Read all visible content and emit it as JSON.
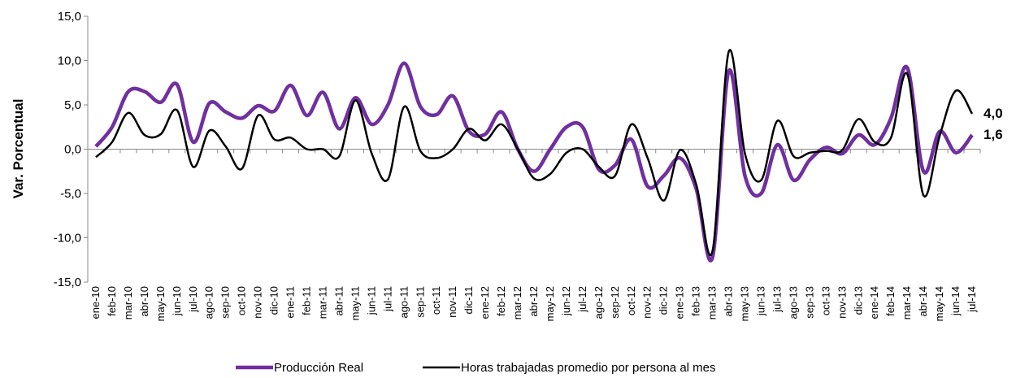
{
  "chart_data": {
    "type": "line",
    "y_label": "Var. Porcentual",
    "categories": [
      "ene-10",
      "feb-10",
      "mar-10",
      "abr-10",
      "may-10",
      "jun-10",
      "jul-10",
      "ago-10",
      "sep-10",
      "oct-10",
      "nov-10",
      "dic-10",
      "ene-11",
      "feb-11",
      "mar-11",
      "abr-11",
      "may-11",
      "jun-11",
      "jul-11",
      "ago-11",
      "sep-11",
      "oct-11",
      "nov-11",
      "dic-11",
      "ene-12",
      "feb-12",
      "mar-12",
      "abr-12",
      "may-12",
      "jun-12",
      "jul-12",
      "ago-12",
      "sep-12",
      "oct-12",
      "nov-12",
      "dic-12",
      "ene-13",
      "feb-13",
      "mar-13",
      "abr-13",
      "may-13",
      "jun-13",
      "jul-13",
      "ago-13",
      "sep-13",
      "oct-13",
      "nov-13",
      "dic-13",
      "ene-14",
      "feb-14",
      "mar-14",
      "abr-14",
      "may-14",
      "jun-14",
      "jul-14"
    ],
    "series": [
      {
        "name": "Producción Real",
        "color": "#7030a0",
        "values": [
          0.3,
          2.5,
          6.5,
          6.5,
          5.3,
          7.3,
          0.8,
          5.2,
          4.2,
          3.5,
          4.9,
          4.3,
          7.2,
          3.8,
          6.4,
          2.3,
          5.8,
          2.8,
          5.0,
          9.7,
          4.8,
          3.9,
          6.0,
          2.0,
          1.7,
          4.2,
          0.0,
          -2.5,
          0.0,
          2.5,
          2.5,
          -2.3,
          -1.8,
          1.1,
          -4.2,
          -3.0,
          -1.0,
          -4.5,
          -12.2,
          8.8,
          -3.0,
          -5.0,
          0.5,
          -3.5,
          -1.2,
          0.2,
          -0.5,
          1.6,
          0.5,
          3.5,
          9.2,
          -2.5,
          2.0,
          -0.4,
          1.6
        ],
        "value_labels": [
          null,
          null,
          null,
          null,
          null,
          null,
          null,
          null,
          null,
          null,
          null,
          null,
          null,
          null,
          null,
          null,
          null,
          null,
          null,
          null,
          null,
          null,
          null,
          null,
          null,
          null,
          null,
          null,
          null,
          null,
          null,
          null,
          null,
          null,
          null,
          null,
          null,
          null,
          null,
          null,
          null,
          null,
          null,
          null,
          null,
          null,
          null,
          null,
          null,
          null,
          null,
          null,
          null,
          null,
          "1,6"
        ]
      },
      {
        "name": "Horas trabajadas promedio por persona al mes",
        "color": "#000000",
        "values": [
          -0.9,
          0.8,
          4.1,
          1.6,
          1.7,
          4.4,
          -2.0,
          2.1,
          0.3,
          -2.2,
          3.8,
          1.1,
          1.3,
          0.0,
          0.0,
          -0.8,
          5.5,
          -0.5,
          -3.4,
          4.8,
          -0.2,
          -1.0,
          0.0,
          2.3,
          1.0,
          2.8,
          0.0,
          -3.3,
          -2.8,
          -0.4,
          0.0,
          -2.0,
          -3.0,
          2.8,
          -1.0,
          -5.8,
          -0.1,
          -4.0,
          -11.5,
          11.0,
          -0.5,
          -3.5,
          3.2,
          -0.8,
          -0.4,
          -0.2,
          -0.1,
          3.4,
          0.8,
          1.3,
          8.5,
          -5.2,
          1.5,
          6.6,
          4.0
        ],
        "value_labels": [
          null,
          null,
          null,
          null,
          null,
          null,
          null,
          null,
          null,
          null,
          null,
          null,
          null,
          null,
          null,
          null,
          null,
          null,
          null,
          null,
          null,
          null,
          null,
          null,
          null,
          null,
          null,
          null,
          null,
          null,
          null,
          null,
          null,
          null,
          null,
          null,
          null,
          null,
          null,
          null,
          null,
          null,
          null,
          null,
          null,
          null,
          null,
          null,
          null,
          null,
          null,
          null,
          null,
          null,
          "4,0"
        ]
      }
    ],
    "ylim": [
      -15,
      15
    ],
    "yticks": [
      {
        "value": -15,
        "label": "-15,0"
      },
      {
        "value": -10,
        "label": "-10,0"
      },
      {
        "value": -5,
        "label": "-5,0"
      },
      {
        "value": 0,
        "label": "0,0"
      },
      {
        "value": 5,
        "label": "5,0"
      },
      {
        "value": 10,
        "label": "10,0"
      },
      {
        "value": 15,
        "label": "15,0"
      }
    ],
    "legend": "bottom"
  }
}
